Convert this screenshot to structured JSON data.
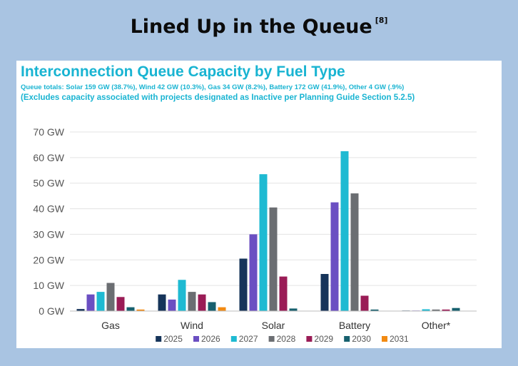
{
  "page": {
    "title": "Lined Up in the Queue",
    "footnote": "[8]"
  },
  "chart_data": {
    "type": "bar",
    "title": "Interconnection Queue Capacity by Fuel Type",
    "subtitle": "Queue totals: Solar 159 GW (38.7%), Wind 42 GW (10.3%), Gas 34 GW (8.2%), Battery 172 GW (41.9%), Other 4 GW (.9%)",
    "note": "(Excludes capacity associated with projects designated as Inactive per Planning Guide Section 5.2.5)",
    "categories": [
      "Gas",
      "Wind",
      "Solar",
      "Battery",
      "Other*"
    ],
    "y_ticks": [
      "0 GW",
      "10 GW",
      "20 GW",
      "30 GW",
      "40 GW",
      "50 GW",
      "60 GW",
      "70 GW"
    ],
    "ylim": [
      0,
      70
    ],
    "grid": true,
    "legend_position": "bottom",
    "series": [
      {
        "name": "2025",
        "color": "#16345a",
        "values": [
          0.8,
          6.5,
          20.5,
          14.5,
          0.2
        ]
      },
      {
        "name": "2026",
        "color": "#6b4fc2",
        "values": [
          6.5,
          4.5,
          30,
          42.5,
          0.2
        ]
      },
      {
        "name": "2027",
        "color": "#1ebad2",
        "values": [
          7.5,
          12.2,
          53.5,
          62.5,
          0.7
        ]
      },
      {
        "name": "2028",
        "color": "#6b6e72",
        "values": [
          11,
          7.5,
          40.5,
          46,
          0.6
        ]
      },
      {
        "name": "2029",
        "color": "#9a1c56",
        "values": [
          5.5,
          6.5,
          13.5,
          6,
          0.6
        ]
      },
      {
        "name": "2030",
        "color": "#17606e",
        "values": [
          1.5,
          3.5,
          1,
          0.6,
          1.2
        ]
      },
      {
        "name": "2031",
        "color": "#f28a12",
        "values": [
          0.6,
          1.5,
          0,
          0,
          0
        ]
      }
    ]
  }
}
